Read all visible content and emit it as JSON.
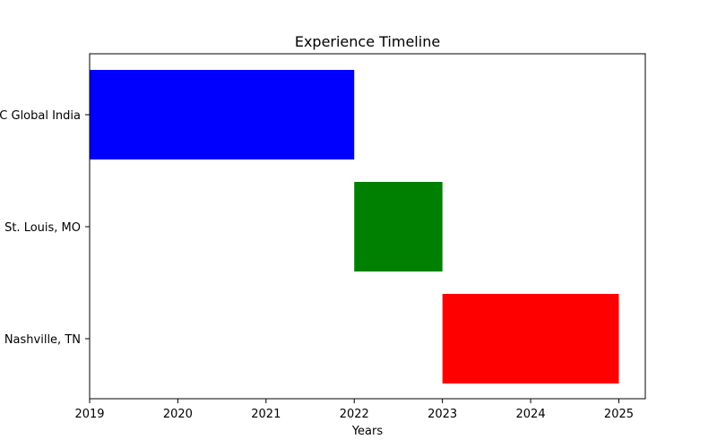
{
  "chart_data": {
    "type": "bar",
    "orientation": "horizontal",
    "title": "Experience Timeline",
    "xlabel": "Years",
    "ylabel": "",
    "xlim": [
      2019,
      2025.3
    ],
    "xticks": [
      "2019",
      "2020",
      "2021",
      "2022",
      "2023",
      "2024",
      "2025"
    ],
    "categories": [
      "C Global India",
      "St. Louis, MO",
      "Nashville, TN"
    ],
    "bars": [
      {
        "category": "C Global India",
        "start": 2019,
        "end": 2022,
        "color": "#0000ff"
      },
      {
        "category": "St. Louis, MO",
        "start": 2022,
        "end": 2023,
        "color": "#008000"
      },
      {
        "category": "Nashville, TN",
        "start": 2023,
        "end": 2025,
        "color": "#ff0000"
      }
    ],
    "grid": false,
    "legend": "none"
  }
}
